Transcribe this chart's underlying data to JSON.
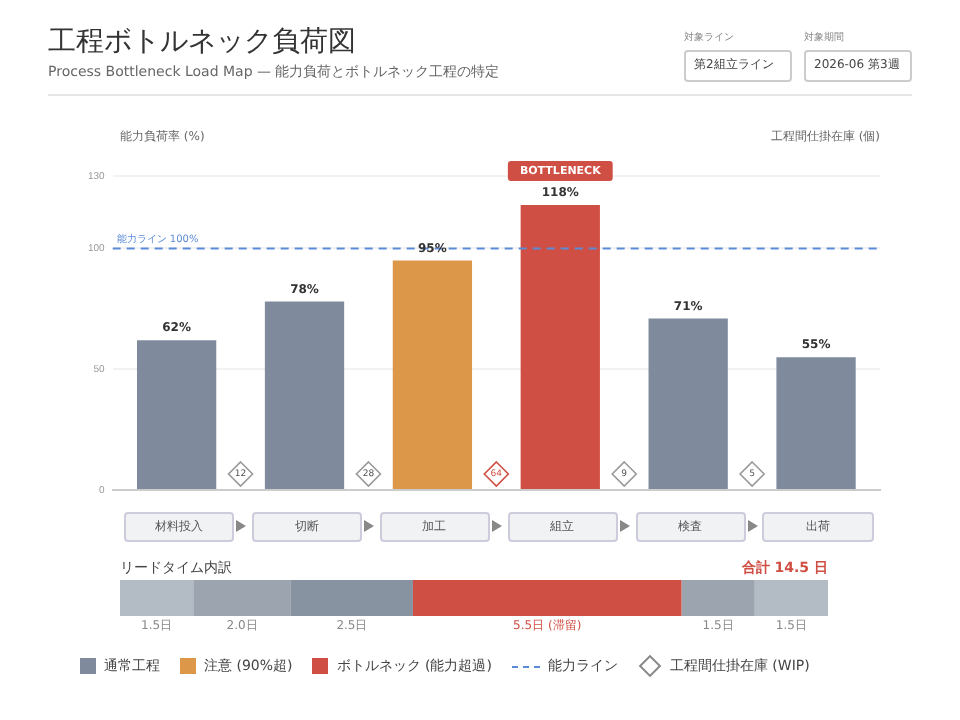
{
  "chart_data": [
    {
      "type": "bar",
      "title": "工程ボトルネック負荷図",
      "subtitle": "Process Bottleneck Load Map — 能力負荷とボトルネック工程の特定",
      "ylabel": "能力負荷率 (%)",
      "categories": [
        "材料投入",
        "切断",
        "加工",
        "組立",
        "検査",
        "出荷"
      ],
      "stacked": true,
      "series": [
        {
          "name": "通常工程",
          "color": "#7f8b9c",
          "values": [
            62,
            78,
            null,
            null,
            71,
            55
          ],
          "value_labels": [
            "62%",
            "78%",
            null,
            null,
            "71%",
            "55%"
          ]
        },
        {
          "name": "注意 (90%超)",
          "color": "#dc9748",
          "values": [
            null,
            null,
            95,
            null,
            null,
            null
          ],
          "value_labels": [
            null,
            null,
            "95%",
            null,
            null,
            null
          ]
        },
        {
          "name": "ボトルネック (能力超過)",
          "color": "#d04f44",
          "values": [
            null,
            null,
            null,
            118,
            null,
            null
          ],
          "value_labels": [
            null,
            null,
            null,
            "118%",
            null,
            null
          ]
        }
      ],
      "ylim": [
        0,
        130
      ],
      "yticks": [
        0,
        50,
        100,
        130
      ],
      "grid": "y",
      "legend": "bottom",
      "ref_lines": [
        {
          "axis": "y",
          "value": 100,
          "label": "能力ライン 100%",
          "color": "#5b8bd6",
          "line_style": "dashed"
        }
      ],
      "annotations": [
        "対象ライン",
        "第2組立ライン",
        "対象期間",
        "2026-06 第3週",
        "工程間仕掛在庫 (個)",
        "12",
        "28",
        "64",
        "9",
        "5",
        "能力ライン",
        "工程間仕掛在庫 (WIP)",
        {
          "text": "BOTTLENECK",
          "x": "組立",
          "y": 118
        }
      ]
    },
    {
      "type": "bar",
      "orientation": "horizontal",
      "stacked": true,
      "title": "リードタイム内訳",
      "tick_labels": false,
      "annotations": [
        "合計 14.5 日"
      ],
      "series": [
        {
          "color": "#b3bbc5",
          "values": [
            1.5
          ],
          "value_labels": [
            "1.5日"
          ]
        },
        {
          "color": "#9ba4af",
          "values": [
            2.0
          ],
          "value_labels": [
            "2.0日"
          ]
        },
        {
          "color": "#8893a2",
          "values": [
            2.5
          ],
          "value_labels": [
            "2.5日"
          ]
        },
        {
          "color": "#d04f44",
          "values": [
            5.5
          ],
          "value_labels": [
            "5.5日 (滞留)"
          ]
        },
        {
          "color": "#9ba4af",
          "values": [
            1.5
          ],
          "value_labels": [
            "1.5日"
          ]
        },
        {
          "color": "#b3bbc5",
          "values": [
            1.5
          ],
          "value_labels": [
            "1.5日"
          ]
        }
      ]
    }
  ]
}
